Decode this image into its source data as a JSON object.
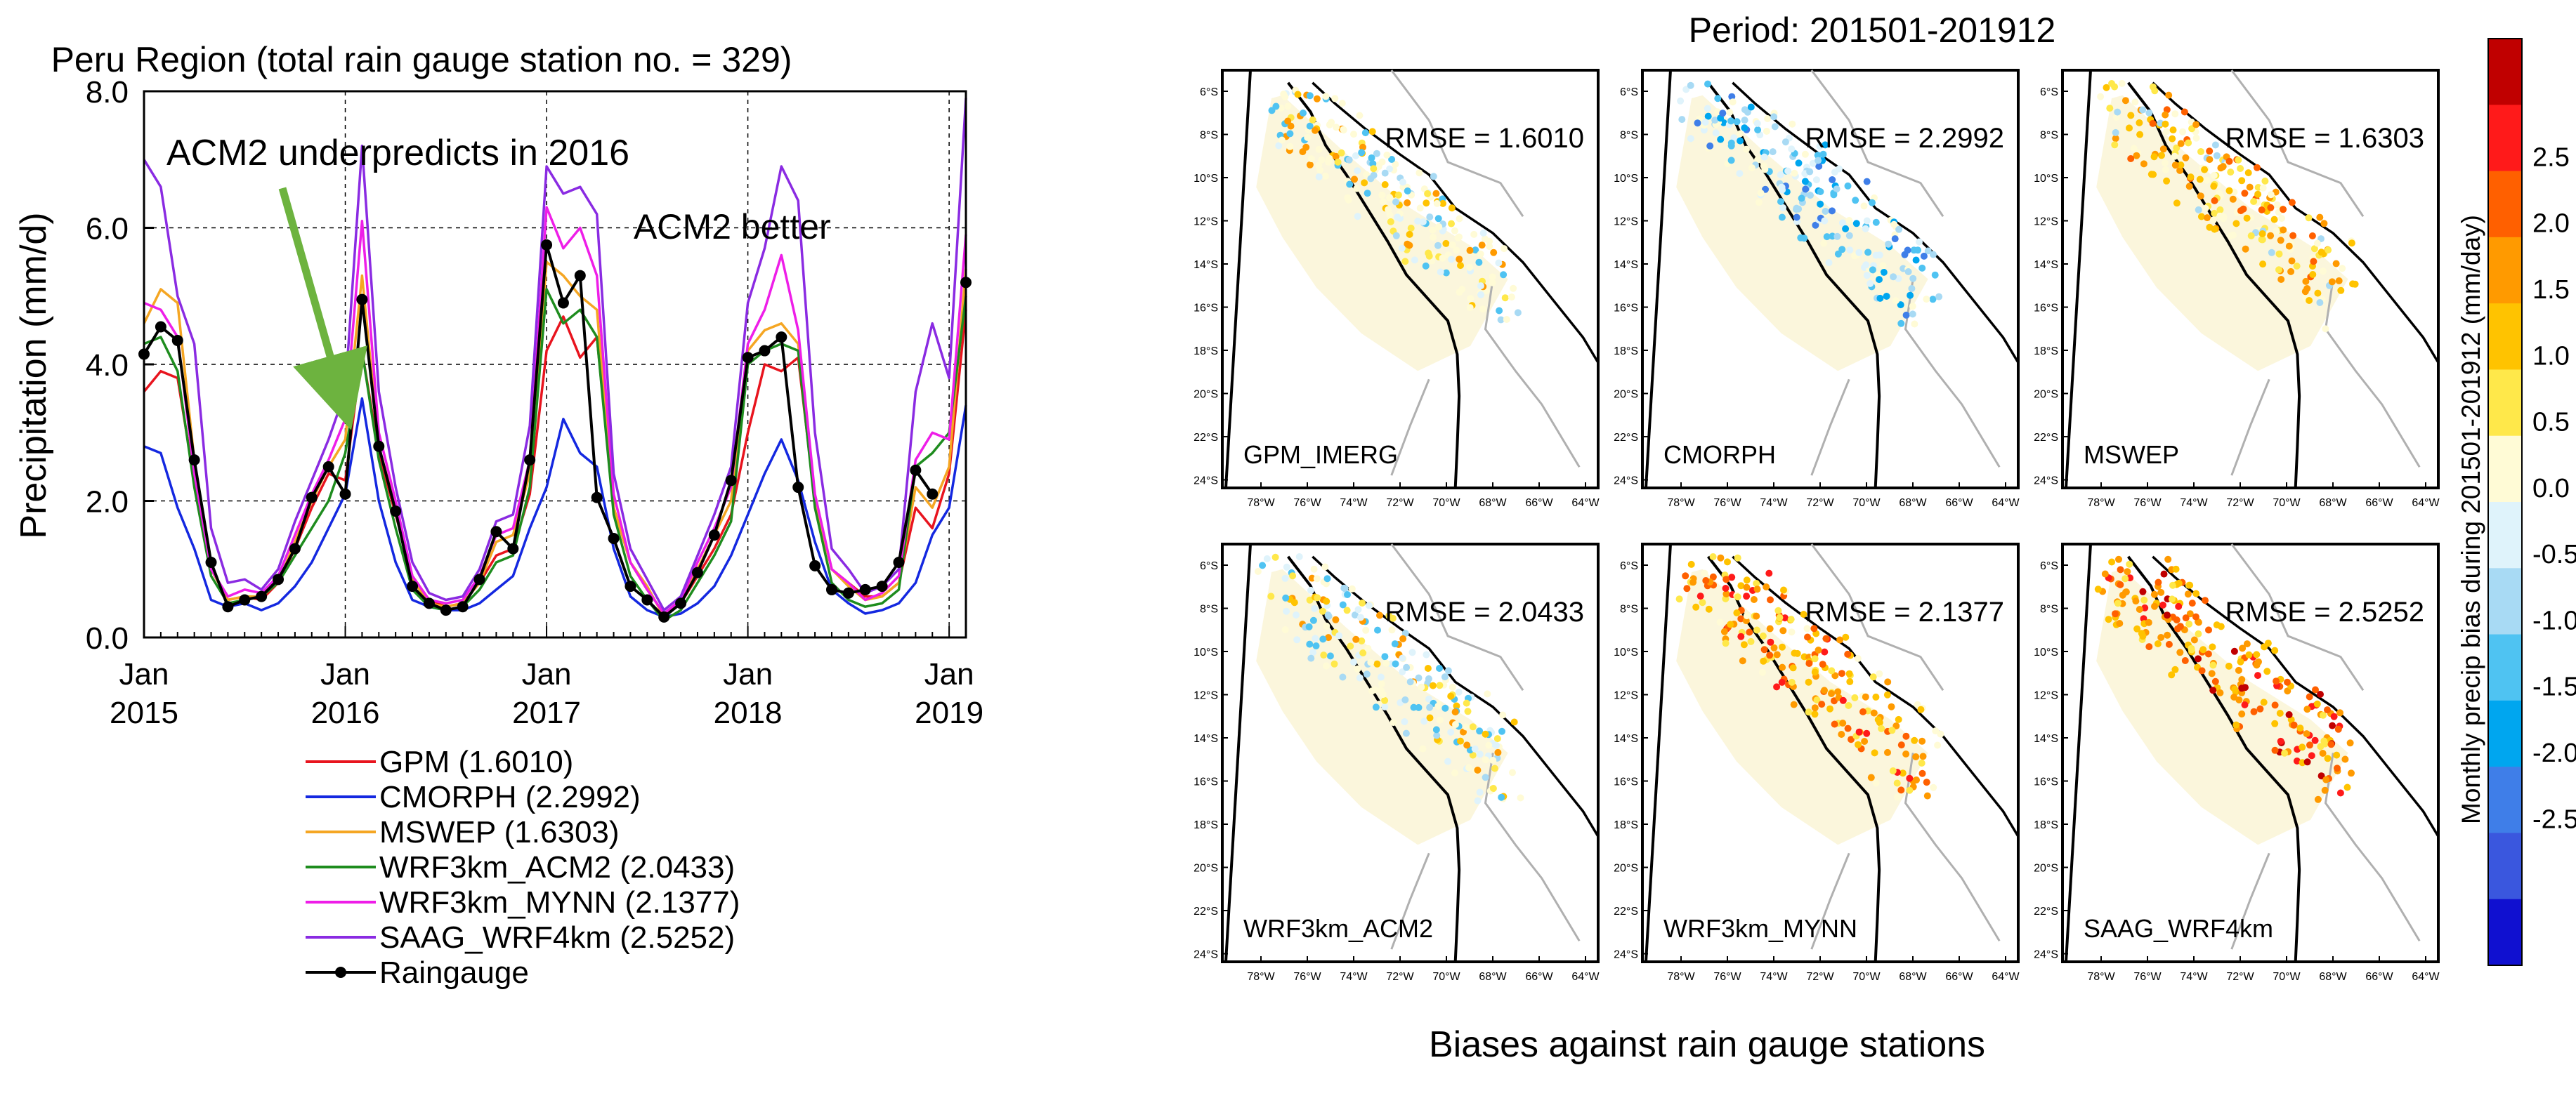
{
  "left_panel": {
    "title": "Peru Region (total rain gauge station no. = 329)",
    "annotation_underpredict": "ACM2 underpredicts in 2016",
    "annotation_better": "ACM2 better",
    "annotation_colors": {
      "underpredict": "#2db34a",
      "better": "#e020e0"
    }
  },
  "right_panel": {
    "period_title": "Period: 201501-201912",
    "bottom_caption": "Biases against rain gauge stations",
    "colorbar_label": "Monthly precip bias during 201501-201912 (mm/day)",
    "colorbar_ticks": [
      "2.5",
      "2.0",
      "1.5",
      "1.0",
      "0.5",
      "0.0",
      "-0.5",
      "-1.0",
      "-1.5",
      "-2.0",
      "-2.5"
    ],
    "colorbar_colors": [
      "#c00000",
      "#ff1a1a",
      "#ff6000",
      "#ff9a00",
      "#ffc300",
      "#ffe84a",
      "#fffbd6",
      "#dff3fb",
      "#a8daf4",
      "#4fc3f2",
      "#00a6ef",
      "#3f7ee8",
      "#3a57de",
      "#1010d0"
    ],
    "lat_ticks": [
      "6°S",
      "8°S",
      "10°S",
      "12°S",
      "14°S",
      "16°S",
      "18°S",
      "20°S",
      "22°S",
      "24°S"
    ],
    "lon_ticks": [
      "78°W",
      "76°W",
      "74°W",
      "72°W",
      "70°W",
      "68°W",
      "66°W",
      "64°W"
    ],
    "maps": [
      {
        "name": "GPM_IMERG",
        "rmse": "RMSE = 1.6010",
        "palette": [
          "#fffbd6",
          "#fffbd6",
          "#fffbd6",
          "#ffe84a",
          "#ffc300",
          "#a8daf4",
          "#dff3fb",
          "#4fc3f2",
          "#ff9a00",
          "#fffbd6"
        ]
      },
      {
        "name": "CMORPH",
        "rmse": "RMSE = 2.2992",
        "palette": [
          "#a8daf4",
          "#4fc3f2",
          "#dff3fb",
          "#00a6ef",
          "#fffbd6",
          "#dff3fb",
          "#a8daf4",
          "#3f7ee8",
          "#4fc3f2",
          "#fffbd6"
        ]
      },
      {
        "name": "MSWEP",
        "rmse": "RMSE = 1.6303",
        "palette": [
          "#ffc300",
          "#ffe84a",
          "#ff9a00",
          "#fffbd6",
          "#ffe84a",
          "#ffc300",
          "#ff9a00",
          "#fffbd6",
          "#ff6000",
          "#a8daf4"
        ]
      },
      {
        "name": "WRF3km_ACM2",
        "rmse": "RMSE = 2.0433",
        "palette": [
          "#fffbd6",
          "#dff3fb",
          "#a8daf4",
          "#ffe84a",
          "#fffbd6",
          "#4fc3f2",
          "#ffc300",
          "#dff3fb",
          "#fffbd6",
          "#ff9a00"
        ]
      },
      {
        "name": "WRF3km_MYNN",
        "rmse": "RMSE = 2.1377",
        "palette": [
          "#ffc300",
          "#ff9a00",
          "#ff6000",
          "#ffe84a",
          "#ff9a00",
          "#ffc300",
          "#ff1a1a",
          "#ffe84a",
          "#fffbd6",
          "#ff6000"
        ]
      },
      {
        "name": "SAAG_WRF4km",
        "rmse": "RMSE = 2.5252",
        "palette": [
          "#ff6000",
          "#ff9a00",
          "#ff1a1a",
          "#ffc300",
          "#ff9a00",
          "#ff6000",
          "#c00000",
          "#ffc300",
          "#ff9a00",
          "#ffe84a"
        ]
      }
    ]
  },
  "chart_data": [
    {
      "type": "line",
      "title": "Peru Region (total rain gauge station no. = 329)",
      "ylabel": "Precipitation (mm/d)",
      "xlabel": "",
      "ylim": [
        0,
        8
      ],
      "xlim": [
        0,
        49
      ],
      "x_tick_labels": [
        {
          "x": 0,
          "month": "Jan",
          "year": "2015"
        },
        {
          "x": 12,
          "month": "Jan",
          "year": "2016"
        },
        {
          "x": 24,
          "month": "Jan",
          "year": "2017"
        },
        {
          "x": 36,
          "month": "Jan",
          "year": "2018"
        },
        {
          "x": 48,
          "month": "Jan",
          "year": "2019"
        }
      ],
      "y_ticks": [
        "0.0",
        "2.0",
        "4.0",
        "6.0",
        "8.0"
      ],
      "y_tick_values": [
        0,
        2,
        4,
        6,
        8
      ],
      "grid": true,
      "legend_position": "bottom",
      "series": [
        {
          "name": "GPM (1.6010)",
          "color": "#e8141e",
          "values": [
            3.6,
            3.9,
            3.8,
            2.3,
            1.0,
            0.55,
            0.6,
            0.55,
            0.8,
            1.3,
            1.9,
            2.4,
            2.3,
            4.2,
            2.7,
            1.8,
            0.9,
            0.55,
            0.45,
            0.5,
            0.8,
            1.2,
            1.3,
            2.1,
            4.2,
            4.7,
            4.1,
            4.4,
            1.9,
            1.1,
            0.7,
            0.35,
            0.5,
            0.9,
            1.3,
            1.8,
            3.0,
            4.0,
            3.9,
            4.1,
            2.0,
            1.0,
            0.8,
            0.6,
            0.6,
            0.8,
            1.9,
            1.6,
            2.4,
            4.8
          ]
        },
        {
          "name": "CMORPH (2.2992)",
          "color": "#1428e0",
          "values": [
            2.8,
            2.7,
            1.9,
            1.3,
            0.55,
            0.45,
            0.5,
            0.4,
            0.5,
            0.75,
            1.1,
            1.6,
            2.1,
            3.5,
            2.0,
            1.1,
            0.55,
            0.45,
            0.4,
            0.4,
            0.5,
            0.7,
            0.9,
            1.6,
            2.2,
            3.2,
            2.7,
            2.5,
            1.3,
            0.6,
            0.4,
            0.3,
            0.35,
            0.5,
            0.75,
            1.2,
            1.8,
            2.4,
            2.9,
            2.3,
            1.4,
            0.7,
            0.5,
            0.35,
            0.4,
            0.5,
            0.8,
            1.5,
            1.9,
            3.4
          ]
        },
        {
          "name": "MSWEP (1.6303)",
          "color": "#f5a623",
          "values": [
            4.6,
            5.1,
            4.9,
            2.6,
            1.0,
            0.55,
            0.6,
            0.6,
            0.8,
            1.4,
            2.0,
            2.5,
            2.9,
            5.3,
            2.8,
            1.9,
            0.85,
            0.5,
            0.45,
            0.5,
            0.8,
            1.4,
            1.5,
            2.4,
            5.5,
            5.3,
            5.0,
            4.8,
            1.9,
            1.1,
            0.75,
            0.3,
            0.5,
            1.0,
            1.5,
            2.0,
            4.2,
            4.5,
            4.6,
            4.3,
            2.0,
            1.0,
            0.75,
            0.55,
            0.6,
            0.8,
            2.2,
            1.9,
            2.5,
            5.4
          ]
        },
        {
          "name": "WRF3km_ACM2 (2.0433)",
          "color": "#1e8c1e",
          "values": [
            4.3,
            4.4,
            3.9,
            2.2,
            0.9,
            0.5,
            0.55,
            0.6,
            0.8,
            1.2,
            1.6,
            2.0,
            2.7,
            4.2,
            2.6,
            1.6,
            0.7,
            0.45,
            0.4,
            0.45,
            0.7,
            1.1,
            1.2,
            2.2,
            5.1,
            4.6,
            4.8,
            4.4,
            1.8,
            0.9,
            0.55,
            0.25,
            0.4,
            0.8,
            1.2,
            1.7,
            4.0,
            4.2,
            4.3,
            4.2,
            1.9,
            0.8,
            0.55,
            0.45,
            0.5,
            0.7,
            2.5,
            2.7,
            3.0,
            5.0
          ]
        },
        {
          "name": "WRF3km_MYNN (2.1377)",
          "color": "#ee1ee8",
          "values": [
            4.9,
            4.8,
            4.4,
            2.4,
            1.0,
            0.6,
            0.7,
            0.65,
            0.9,
            1.5,
            2.1,
            2.6,
            3.2,
            6.1,
            3.0,
            2.0,
            0.9,
            0.55,
            0.5,
            0.55,
            0.9,
            1.5,
            1.6,
            2.6,
            6.3,
            5.7,
            6.0,
            5.3,
            2.1,
            1.1,
            0.7,
            0.35,
            0.55,
            1.1,
            1.6,
            2.2,
            4.3,
            4.8,
            5.6,
            4.5,
            2.1,
            1.0,
            0.8,
            0.55,
            0.65,
            0.9,
            2.6,
            3.0,
            2.9,
            5.9
          ]
        },
        {
          "name": "SAAG_WRF4km (2.5252)",
          "color": "#8a2be2",
          "values": [
            7.0,
            6.6,
            5.0,
            4.3,
            1.6,
            0.8,
            0.85,
            0.7,
            1.0,
            1.7,
            2.3,
            2.9,
            3.6,
            7.2,
            3.6,
            2.2,
            1.1,
            0.65,
            0.55,
            0.6,
            1.0,
            1.7,
            1.8,
            3.1,
            6.9,
            6.5,
            6.6,
            6.2,
            2.4,
            1.3,
            0.85,
            0.4,
            0.6,
            1.2,
            1.8,
            2.5,
            4.9,
            5.7,
            6.9,
            6.4,
            3.0,
            1.3,
            1.0,
            0.65,
            0.75,
            1.0,
            3.6,
            4.6,
            3.8,
            7.9
          ]
        },
        {
          "name": "Raingauge",
          "color": "#000000",
          "marker": "circle",
          "values": [
            4.15,
            4.55,
            4.35,
            2.6,
            1.1,
            0.45,
            0.55,
            0.6,
            0.85,
            1.3,
            2.05,
            2.5,
            2.1,
            4.95,
            2.8,
            1.85,
            0.75,
            0.5,
            0.4,
            0.45,
            0.85,
            1.55,
            1.3,
            2.6,
            5.75,
            4.9,
            5.3,
            2.05,
            1.45,
            0.75,
            0.55,
            0.3,
            0.5,
            0.95,
            1.5,
            2.3,
            4.1,
            4.2,
            4.4,
            2.2,
            1.05,
            0.7,
            0.65,
            0.7,
            0.75,
            1.1,
            2.45,
            2.1,
            null,
            5.2
          ]
        }
      ]
    }
  ]
}
